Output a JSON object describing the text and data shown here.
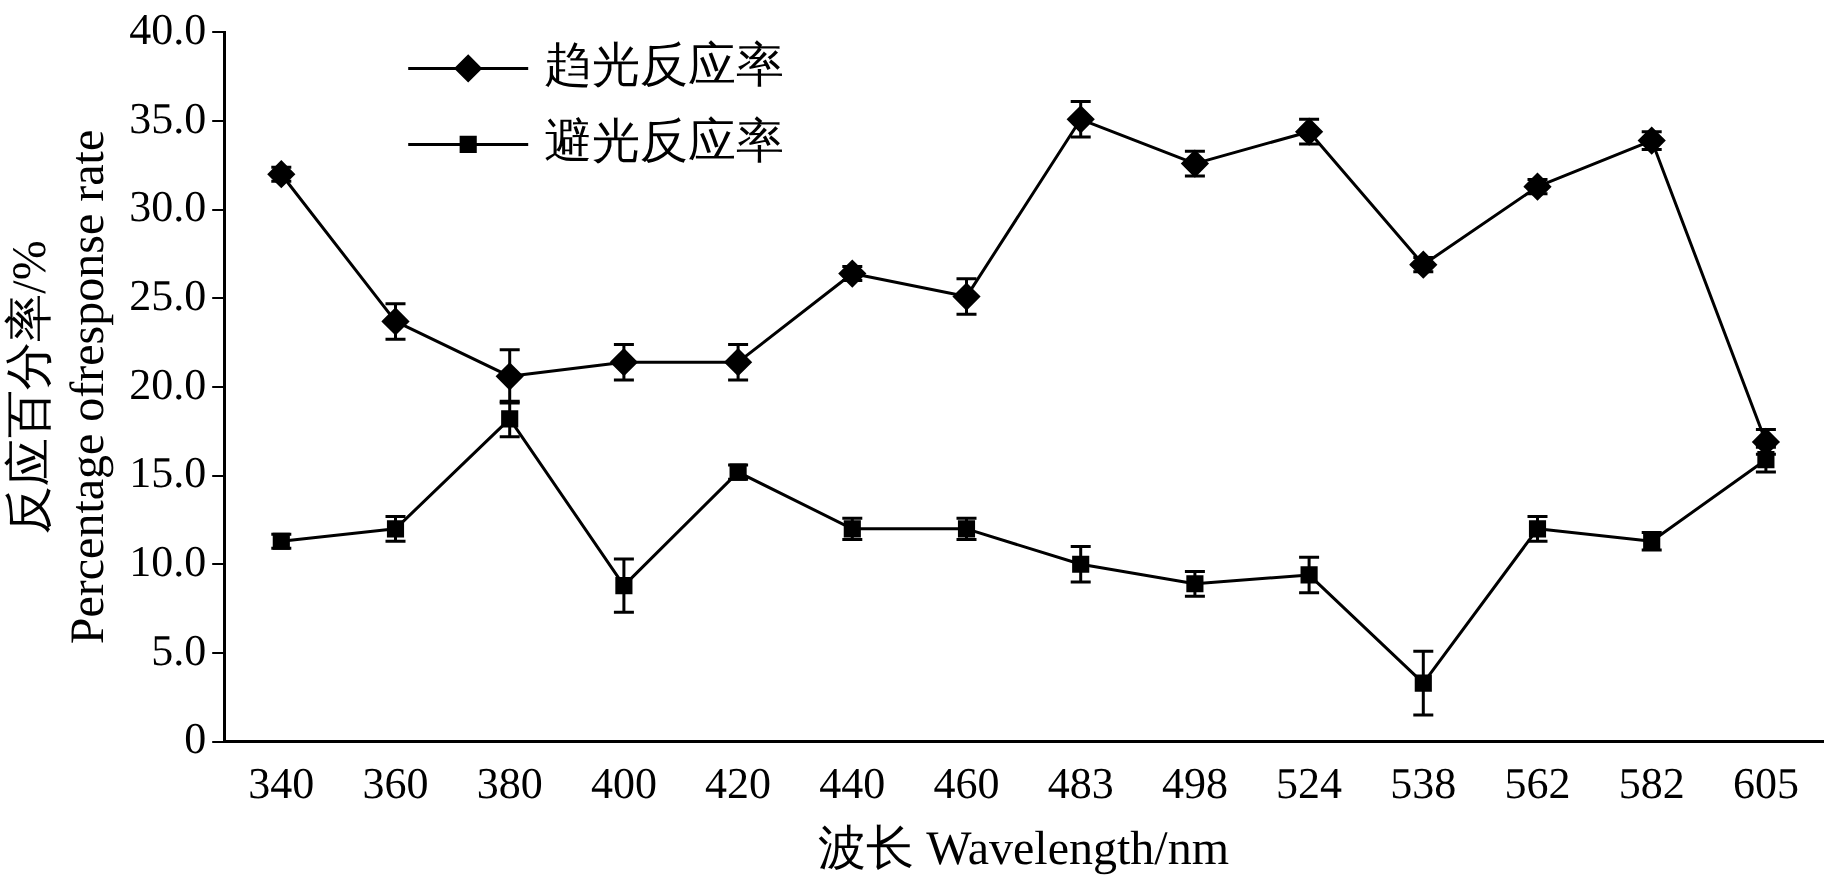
{
  "chart_data": {
    "type": "line",
    "xlabel": "波长 Wavelength/nm",
    "ylabel": "反应百分率/%\nPercentage ofresponse rate",
    "categories": [
      "340",
      "360",
      "380",
      "400",
      "420",
      "440",
      "460",
      "483",
      "498",
      "524",
      "538",
      "562",
      "582",
      "605"
    ],
    "series": [
      {
        "name": "趋光反应率",
        "color": "#000000",
        "marker": "diamond",
        "values": [
          32.0,
          23.7,
          20.6,
          21.4,
          21.4,
          26.4,
          25.1,
          35.1,
          32.6,
          34.4,
          26.9,
          31.3,
          33.9,
          16.9
        ],
        "errors": [
          0.4,
          1.0,
          1.5,
          1.0,
          1.0,
          0.4,
          1.0,
          1.0,
          0.7,
          0.7,
          0.4,
          0.4,
          0.5,
          0.7
        ]
      },
      {
        "name": "避光反应率",
        "color": "#000000",
        "marker": "square",
        "values": [
          11.3,
          12.0,
          18.2,
          8.8,
          15.2,
          12.0,
          12.0,
          10.0,
          8.9,
          9.4,
          3.3,
          12.0,
          11.3,
          15.9
        ],
        "errors": [
          0.4,
          0.7,
          1.0,
          1.5,
          0.4,
          0.6,
          0.6,
          1.0,
          0.7,
          1.0,
          1.8,
          0.7,
          0.5,
          0.7
        ]
      }
    ],
    "ylim": [
      0,
      40
    ],
    "yticks": [
      0,
      {
        "value": 5,
        "label": "5.0"
      },
      {
        "value": 10,
        "label": "10.0"
      },
      {
        "value": 15,
        "label": "15.0"
      },
      {
        "value": 20,
        "label": "20.0"
      },
      {
        "value": 25,
        "label": "25.0"
      },
      {
        "value": 30,
        "label": "30.0"
      },
      {
        "value": 35,
        "label": "35.0"
      },
      {
        "value": 40,
        "label": "40.0"
      }
    ],
    "grid": false,
    "legend": "top left",
    "line_style": "solid"
  }
}
